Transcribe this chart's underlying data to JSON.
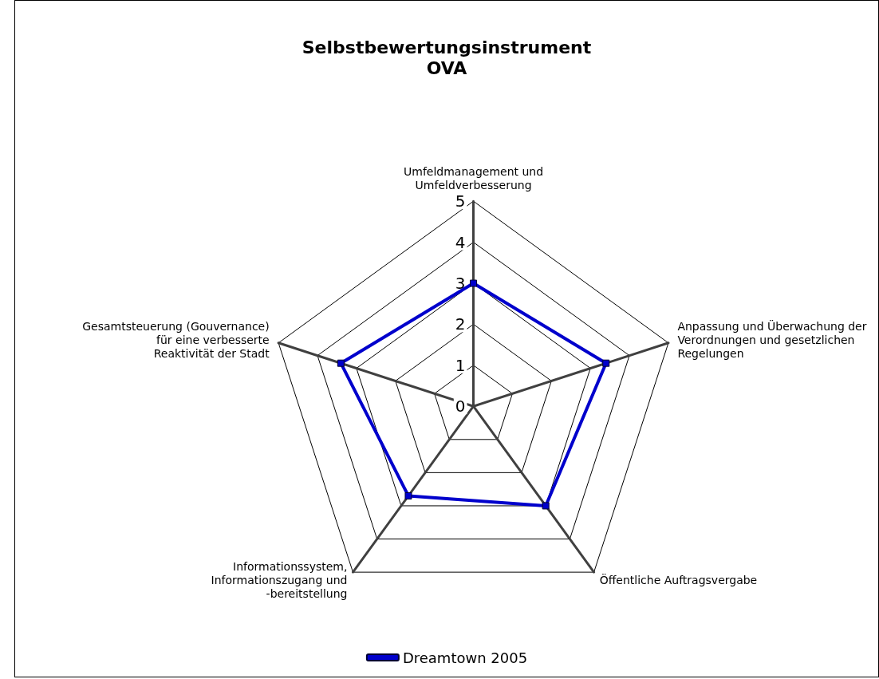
{
  "chart_data": {
    "type": "radar",
    "title": "Selbstbewertungsinstrument OVA",
    "categories": [
      "Umfeldmanagement und Umfeldverbesserung",
      "Anpassung und Überwachung der Verordnungen und gesetzlichen Regelungen",
      "Öffentliche Auftragsvergabe",
      "Informationssystem, Informationszugang und -bereitstellung",
      "Gesamtsteuerung (Gouvernance) für eine verbesserte Reaktivität der Stadt"
    ],
    "series": [
      {
        "name": "Dreamtown 2005",
        "color": "#0000cc",
        "values": [
          3,
          3.4,
          3,
          2.7,
          3.4
        ]
      }
    ],
    "ylim": [
      0,
      5
    ],
    "yticks": [
      0,
      1,
      2,
      3,
      4,
      5
    ],
    "marker": "square",
    "legend": "bottom",
    "grid": true
  }
}
